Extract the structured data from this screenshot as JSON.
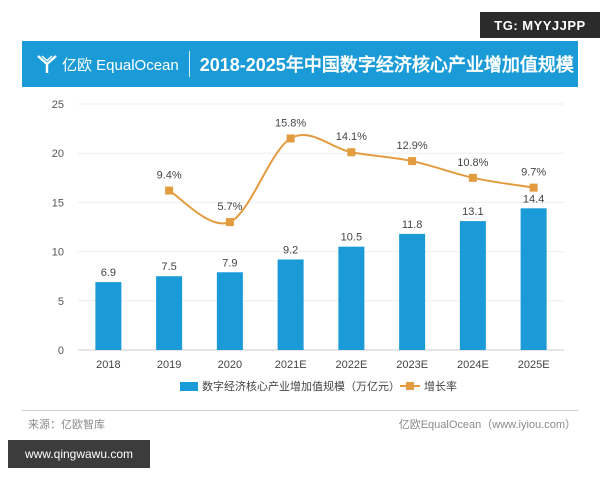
{
  "badge": {
    "text": "TG: MYYJJPP"
  },
  "header": {
    "logo_text": "亿欧 EqualOcean",
    "title": "2018-2025年中国数字经济核心产业增加值规模"
  },
  "colors": {
    "bar": "#1a9bd7",
    "line": "#e39b3f",
    "banner": "#1a9bd7"
  },
  "chart_data": {
    "type": "bar",
    "title": "2018-2025年中国数字经济核心产业增加值规模",
    "categories": [
      "2018",
      "2019",
      "2020",
      "2021E",
      "2022E",
      "2023E",
      "2024E",
      "2025E"
    ],
    "series": [
      {
        "name": "数字经济核心产业增加值规模（万亿元）",
        "type": "bar",
        "values": [
          6.9,
          7.5,
          7.9,
          9.2,
          10.5,
          11.8,
          13.1,
          14.4
        ],
        "labels": [
          "6.9",
          "7.5",
          "7.9",
          "9.2",
          "10.5",
          "11.8",
          "13.1",
          "14.4"
        ]
      },
      {
        "name": "增长率",
        "type": "line",
        "values": [
          null,
          9.4,
          5.7,
          15.8,
          14.1,
          12.9,
          10.8,
          9.7
        ],
        "labels": [
          "",
          "9.4%",
          "5.7%",
          "15.8%",
          "14.1%",
          "12.9%",
          "10.8%",
          "9.7%"
        ],
        "plot_y": [
          null,
          16.2,
          13.0,
          21.5,
          20.1,
          19.2,
          17.5,
          16.5
        ]
      }
    ],
    "yticks": [
      "0",
      "5",
      "10",
      "15",
      "20",
      "25"
    ],
    "ylim": [
      0,
      25
    ],
    "legend_position": "bottom-center"
  },
  "footer": {
    "source": "来源：亿欧智库",
    "credit": "亿欧EqualOcean（www.iyiou.com）"
  },
  "watermark": {
    "text": "www.qingwawu.com"
  }
}
